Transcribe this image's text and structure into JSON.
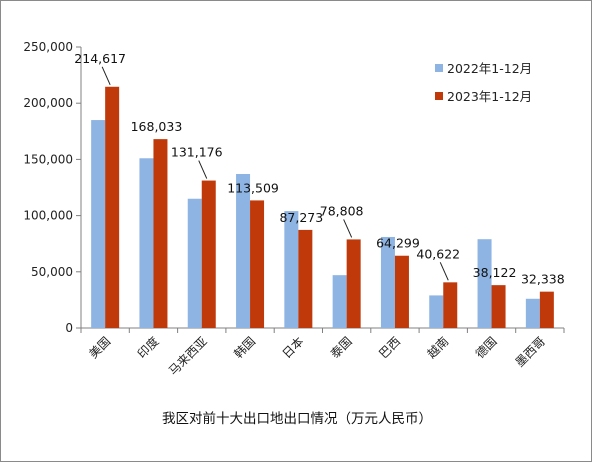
{
  "chart_data": {
    "type": "bar",
    "title": "我区对前十大出口地出口情况（万元人民币）",
    "xlabel": "",
    "ylabel": "",
    "ylim": [
      0,
      250000
    ],
    "yticks": [
      0,
      50000,
      100000,
      150000,
      200000,
      250000
    ],
    "ytick_labels": [
      "0",
      "50,000",
      "100,000",
      "150,000",
      "200,000",
      "250,000"
    ],
    "grid": false,
    "legend_position": "top-right",
    "categories": [
      "美国",
      "印度",
      "马来西亚",
      "韩国",
      "日本",
      "泰国",
      "巴西",
      "越南",
      "德国",
      "墨西哥"
    ],
    "series": [
      {
        "name": "2022年1-12月",
        "color": "#8eb4e3",
        "values": [
          185000,
          151000,
          115000,
          137000,
          104000,
          47000,
          81000,
          29000,
          79000,
          26000
        ]
      },
      {
        "name": "2023年1-12月",
        "color": "#c0390b",
        "values": [
          214617,
          168033,
          131176,
          113509,
          87273,
          78808,
          64299,
          40622,
          38122,
          32338
        ]
      }
    ],
    "data_labels": [
      "214,617",
      "168,033",
      "131,176",
      "113,509",
      "87,273",
      "78,808",
      "64,299",
      "40,622",
      "38,122",
      "32,338"
    ]
  }
}
